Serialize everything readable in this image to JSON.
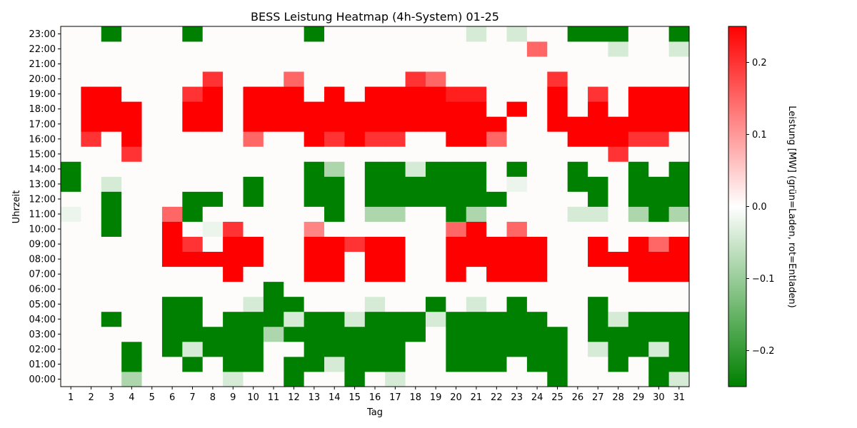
{
  "chart_data": {
    "type": "heatmap",
    "title": "BESS Leistung Heatmap (4h-System) 01-25",
    "xlabel": "Tag",
    "ylabel": "Uhrzeit",
    "colorbar_label": "Leistung [MW] (grün=Laden, rot=Entladen)",
    "vmin": -0.25,
    "vmax": 0.25,
    "colorbar_ticks": [
      -0.2,
      -0.1,
      0.0,
      0.1,
      0.2
    ],
    "colorbar_tick_labels": [
      "−0.2",
      "−0.1",
      "0.0",
      "0.1",
      "0.2"
    ],
    "colors": {
      "negative": "#008000",
      "zero": "#ffffff",
      "positive": "#ff0000"
    },
    "days": [
      1,
      2,
      3,
      4,
      5,
      6,
      7,
      8,
      9,
      10,
      11,
      12,
      13,
      14,
      15,
      16,
      17,
      18,
      19,
      20,
      21,
      22,
      23,
      24,
      25,
      26,
      27,
      28,
      29,
      30,
      31
    ],
    "hours": [
      "00:00",
      "01:00",
      "02:00",
      "03:00",
      "04:00",
      "05:00",
      "06:00",
      "07:00",
      "08:00",
      "09:00",
      "10:00",
      "11:00",
      "12:00",
      "13:00",
      "14:00",
      "15:00",
      "16:00",
      "17:00",
      "18:00",
      "19:00",
      "20:00",
      "21:00",
      "22:00",
      "23:00"
    ],
    "values": [
      [
        0,
        0,
        0,
        -0.08,
        0,
        0,
        0,
        0,
        -0.04,
        0,
        0,
        -0.25,
        0,
        0,
        -0.25,
        0,
        -0.04,
        0,
        0,
        0,
        0,
        0,
        0,
        0,
        -0.25,
        0,
        0,
        0,
        0,
        -0.25,
        -0.04
      ],
      [
        0,
        0,
        0,
        -0.25,
        0,
        0,
        -0.25,
        0,
        -0.25,
        -0.25,
        0,
        -0.25,
        -0.25,
        -0.04,
        -0.25,
        -0.25,
        -0.25,
        0,
        0,
        -0.25,
        -0.25,
        -0.25,
        0,
        -0.25,
        -0.25,
        0,
        0,
        -0.25,
        0,
        -0.25,
        -0.25
      ],
      [
        0,
        0,
        0,
        -0.25,
        0,
        -0.25,
        -0.04,
        -0.25,
        -0.25,
        -0.25,
        0,
        0,
        -0.25,
        -0.25,
        -0.25,
        -0.25,
        -0.25,
        0,
        0,
        -0.25,
        -0.25,
        -0.25,
        -0.25,
        -0.25,
        -0.25,
        0,
        -0.04,
        -0.25,
        -0.25,
        -0.04,
        -0.25
      ],
      [
        0,
        0,
        0,
        0,
        0,
        -0.25,
        -0.25,
        -0.25,
        -0.25,
        -0.25,
        -0.08,
        -0.25,
        -0.25,
        -0.25,
        -0.25,
        -0.25,
        -0.25,
        -0.25,
        0,
        -0.25,
        -0.25,
        -0.25,
        -0.25,
        -0.25,
        -0.25,
        0,
        -0.25,
        -0.25,
        -0.25,
        -0.25,
        -0.25
      ],
      [
        0,
        0,
        -0.25,
        0,
        0,
        -0.25,
        -0.25,
        0,
        -0.25,
        -0.25,
        -0.25,
        -0.04,
        -0.25,
        -0.25,
        -0.04,
        -0.25,
        -0.25,
        -0.25,
        -0.04,
        -0.25,
        -0.25,
        -0.25,
        -0.25,
        -0.25,
        0,
        0,
        -0.25,
        -0.04,
        -0.25,
        -0.25,
        -0.25
      ],
      [
        0,
        0,
        0,
        0,
        0,
        -0.25,
        -0.25,
        0,
        0,
        -0.04,
        -0.25,
        -0.25,
        0,
        0,
        0,
        -0.04,
        0,
        0,
        -0.25,
        0,
        -0.04,
        0,
        -0.25,
        0,
        0,
        0,
        -0.25,
        0,
        0,
        0,
        0
      ],
      [
        0,
        0,
        0,
        0,
        0,
        0,
        0,
        0,
        0,
        0,
        -0.25,
        0,
        0,
        0,
        0,
        0,
        0,
        0,
        0,
        0,
        0,
        0,
        0,
        0,
        0,
        0,
        0,
        0,
        0,
        0,
        0
      ],
      [
        0,
        0,
        0,
        0,
        0,
        0,
        0,
        0,
        0.25,
        0,
        0,
        0,
        0.25,
        0.25,
        0,
        0.25,
        0.25,
        0,
        0,
        0.25,
        0,
        0.25,
        0.25,
        0.25,
        0,
        0,
        0,
        0,
        0.25,
        0.25,
        0.25
      ],
      [
        0,
        0,
        0,
        0,
        0,
        0.25,
        0.25,
        0.25,
        0.25,
        0.25,
        0,
        0,
        0.25,
        0.25,
        0,
        0.25,
        0.25,
        0,
        0,
        0.25,
        0.25,
        0.25,
        0.25,
        0.25,
        0,
        0,
        0.25,
        0.25,
        0.25,
        0.25,
        0.25
      ],
      [
        0,
        0,
        0,
        0,
        0,
        0.25,
        0.2,
        0,
        0.25,
        0.25,
        0,
        0,
        0.25,
        0.25,
        0.2,
        0.25,
        0.25,
        0,
        0,
        0.25,
        0.25,
        0.25,
        0.25,
        0.25,
        0,
        0,
        0.25,
        0,
        0.25,
        0.15,
        0.25
      ],
      [
        0,
        0,
        -0.25,
        0,
        0,
        0.25,
        0,
        -0.02,
        0.2,
        0,
        0,
        0,
        0.12,
        0,
        0,
        0,
        0,
        0,
        0,
        0.15,
        0.25,
        0,
        0.15,
        0,
        0,
        0,
        0,
        0,
        0,
        0,
        0
      ],
      [
        -0.02,
        0,
        -0.25,
        0,
        0,
        0.15,
        -0.25,
        0,
        0,
        0,
        0,
        0,
        0,
        -0.25,
        0,
        -0.08,
        -0.08,
        0,
        0,
        -0.25,
        -0.08,
        0,
        0,
        0,
        0,
        -0.04,
        -0.04,
        0,
        -0.08,
        -0.25,
        -0.08
      ],
      [
        0,
        0,
        -0.25,
        0,
        0,
        0,
        -0.25,
        -0.25,
        0,
        -0.25,
        0,
        0,
        -0.25,
        -0.25,
        0,
        -0.25,
        -0.25,
        -0.25,
        -0.25,
        -0.25,
        -0.25,
        -0.25,
        0,
        0,
        0,
        0,
        -0.25,
        0,
        -0.25,
        -0.25,
        -0.25
      ],
      [
        -0.25,
        0,
        -0.04,
        0,
        0,
        0,
        0,
        0,
        0,
        -0.25,
        0,
        0,
        -0.25,
        -0.25,
        0,
        -0.25,
        -0.25,
        -0.25,
        -0.25,
        -0.25,
        -0.25,
        0,
        -0.02,
        0,
        0,
        -0.25,
        -0.25,
        0,
        -0.25,
        -0.25,
        -0.25
      ],
      [
        -0.25,
        0,
        0,
        0,
        0,
        0,
        0,
        0,
        0,
        0,
        0,
        0,
        -0.25,
        -0.08,
        0,
        -0.25,
        -0.25,
        -0.04,
        -0.25,
        -0.25,
        -0.25,
        0,
        -0.25,
        0,
        0,
        -0.25,
        0,
        0,
        -0.25,
        0,
        -0.25
      ],
      [
        0,
        0,
        0,
        0.2,
        0,
        0,
        0,
        0,
        0,
        0,
        0,
        0,
        0,
        0,
        0,
        0,
        0,
        0,
        0,
        0,
        0,
        0,
        0,
        0,
        0,
        0,
        0,
        0.2,
        0,
        0,
        0
      ],
      [
        0,
        0.2,
        0,
        0.25,
        0,
        0,
        0,
        0,
        0,
        0.15,
        0,
        0,
        0.25,
        0.2,
        0.25,
        0.2,
        0.2,
        0,
        0,
        0.25,
        0.25,
        0.15,
        0,
        0,
        0,
        0.25,
        0.25,
        0.25,
        0.2,
        0.2,
        0
      ],
      [
        0,
        0.25,
        0.25,
        0.25,
        0,
        0,
        0.25,
        0.25,
        0,
        0.25,
        0.25,
        0.25,
        0.25,
        0.25,
        0.25,
        0.25,
        0.25,
        0.25,
        0.25,
        0.25,
        0.25,
        0.25,
        0,
        0,
        0.25,
        0.25,
        0.25,
        0.25,
        0.25,
        0.25,
        0.25
      ],
      [
        0,
        0.25,
        0.25,
        0.25,
        0,
        0,
        0.25,
        0.25,
        0,
        0.25,
        0.25,
        0.25,
        0.25,
        0.25,
        0.25,
        0.25,
        0.25,
        0.25,
        0.25,
        0.25,
        0.25,
        0,
        0.25,
        0,
        0.25,
        0,
        0.25,
        0,
        0.25,
        0.25,
        0.25
      ],
      [
        0,
        0.25,
        0.25,
        0,
        0,
        0,
        0.2,
        0.25,
        0,
        0.25,
        0.25,
        0.25,
        0,
        0.25,
        0,
        0.25,
        0.25,
        0.25,
        0.25,
        0.22,
        0.22,
        0,
        0,
        0,
        0.25,
        0,
        0.2,
        0,
        0.25,
        0.25,
        0.25
      ],
      [
        0,
        0,
        0,
        0,
        0,
        0,
        0,
        0.2,
        0,
        0,
        0,
        0.15,
        0,
        0,
        0,
        0,
        0,
        0.2,
        0.15,
        0,
        0,
        0,
        0,
        0,
        0.2,
        0,
        0,
        0,
        0,
        0,
        0
      ],
      [
        0,
        0,
        0,
        0,
        0,
        0,
        0,
        0,
        0,
        0,
        0,
        0,
        0,
        0,
        0,
        0,
        0,
        0,
        0,
        0,
        0,
        0,
        0,
        0,
        0,
        0,
        0,
        0,
        0,
        0,
        0
      ],
      [
        0,
        0,
        0,
        0,
        0,
        0,
        0,
        0,
        0,
        0,
        0,
        0,
        0,
        0,
        0,
        0,
        0,
        0,
        0,
        0,
        0,
        0,
        0,
        0.15,
        0,
        0,
        0,
        -0.04,
        0,
        0,
        -0.04
      ],
      [
        0,
        0,
        -0.25,
        0,
        0,
        0,
        -0.25,
        0,
        0,
        0,
        0,
        0,
        -0.25,
        0,
        0,
        0,
        0,
        0,
        0,
        0,
        -0.04,
        0,
        -0.04,
        0,
        0,
        -0.25,
        -0.25,
        -0.25,
        0,
        0,
        -0.25
      ]
    ]
  }
}
